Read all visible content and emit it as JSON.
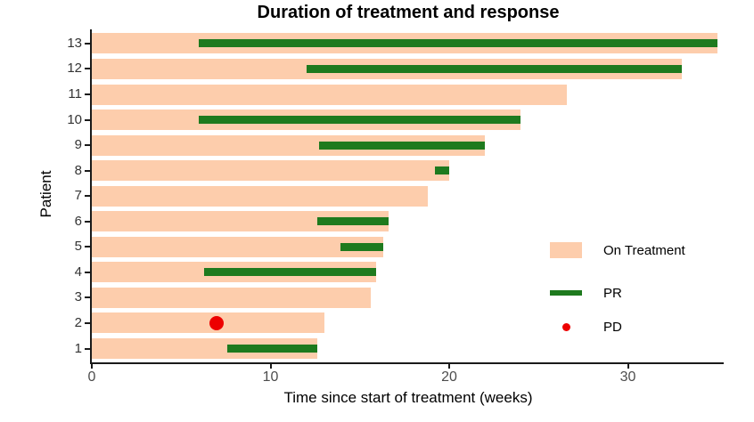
{
  "chart_data": {
    "type": "bar",
    "subtype": "swimmer-plot",
    "orientation": "horizontal",
    "title": "Duration of treatment and response",
    "xlabel": "Time since start of treatment (weeks)",
    "ylabel": "Patient",
    "xlim": [
      0,
      35.4
    ],
    "xticks": [
      "0",
      "10",
      "20",
      "30"
    ],
    "xtick_values": [
      0,
      10,
      20,
      30
    ],
    "grid": false,
    "legend_position": "right-middle",
    "patients": [
      {
        "id": "1",
        "on_treatment_weeks": 12.6,
        "pr_start": 7.6,
        "pr_end": 12.6,
        "pd_week": null
      },
      {
        "id": "2",
        "on_treatment_weeks": 13.0,
        "pr_start": null,
        "pr_end": null,
        "pd_week": 7
      },
      {
        "id": "3",
        "on_treatment_weeks": 15.6,
        "pr_start": null,
        "pr_end": null,
        "pd_week": null
      },
      {
        "id": "4",
        "on_treatment_weeks": 15.9,
        "pr_start": 6.3,
        "pr_end": 15.9,
        "pd_week": null
      },
      {
        "id": "5",
        "on_treatment_weeks": 16.3,
        "pr_start": 13.9,
        "pr_end": 16.3,
        "pd_week": null
      },
      {
        "id": "6",
        "on_treatment_weeks": 16.6,
        "pr_start": 12.6,
        "pr_end": 16.6,
        "pd_week": null
      },
      {
        "id": "7",
        "on_treatment_weeks": 18.8,
        "pr_start": null,
        "pr_end": null,
        "pd_week": null
      },
      {
        "id": "8",
        "on_treatment_weeks": 20.0,
        "pr_start": 19.2,
        "pr_end": 20.0,
        "pd_week": null
      },
      {
        "id": "9",
        "on_treatment_weeks": 22.0,
        "pr_start": 12.7,
        "pr_end": 22.0,
        "pd_week": null
      },
      {
        "id": "10",
        "on_treatment_weeks": 24.0,
        "pr_start": 6.0,
        "pr_end": 24.0,
        "pd_week": null
      },
      {
        "id": "11",
        "on_treatment_weeks": 26.6,
        "pr_start": null,
        "pr_end": null,
        "pd_week": null
      },
      {
        "id": "12",
        "on_treatment_weeks": 33.0,
        "pr_start": 12.0,
        "pr_end": 33.0,
        "pd_week": null
      },
      {
        "id": "13",
        "on_treatment_weeks": 35.0,
        "pr_start": 6.0,
        "pr_end": 35.0,
        "pd_week": null
      }
    ],
    "legend": [
      {
        "label": "On Treatment",
        "marker": "rect",
        "color": "#FDCDAC"
      },
      {
        "label": "PR",
        "marker": "line",
        "color": "#1E7A1E"
      },
      {
        "label": "PD",
        "marker": "point",
        "color": "#ED0000"
      }
    ],
    "colors": {
      "on_treatment": "#FDCDAC",
      "pr": "#1E7A1E",
      "pd": "#ED0000",
      "axis": "#1A1A1A",
      "tick_label": "#4D4D4D",
      "text": "#000000"
    }
  }
}
